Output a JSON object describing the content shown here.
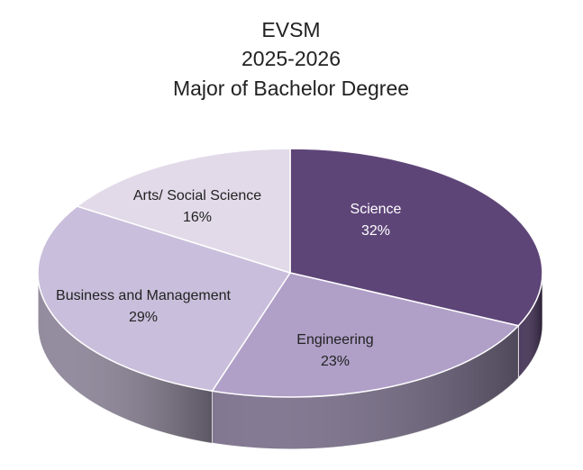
{
  "chart_data": {
    "type": "pie3d",
    "title": [
      "EVSM",
      "2025-2026",
      "Major of Bachelor Degree"
    ],
    "categories": [
      "Science",
      "Engineering",
      "Business and Management",
      "Arts/ Social Science"
    ],
    "values": [
      32,
      23,
      29,
      16
    ],
    "value_labels": [
      "32%",
      "23%",
      "29%",
      "16%"
    ],
    "colors": [
      "#5e4578",
      "#b0a0c8",
      "#c9bedb",
      "#e2dae9"
    ]
  }
}
